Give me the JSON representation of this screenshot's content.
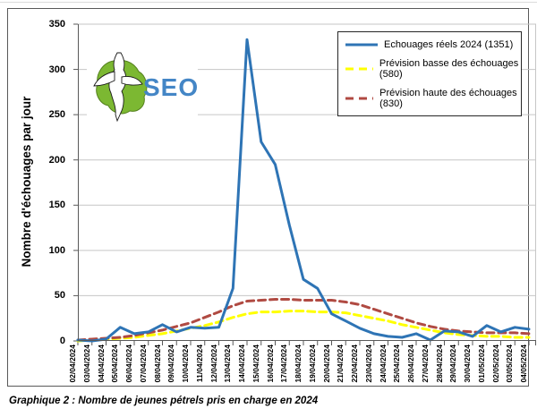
{
  "page": {
    "caption": "Graphique 2 : Nombre de jeunes pétrels pris en charge en 2024"
  },
  "logo": {
    "text": "SEOR",
    "island_color": "#7CB832",
    "text_color": "#4486C6"
  },
  "chart_data": {
    "type": "line",
    "title": "",
    "xlabel": "",
    "ylabel": "Nombre d'échouages par jour",
    "ylim": [
      0,
      350
    ],
    "yticks": [
      0,
      50,
      100,
      150,
      200,
      250,
      300,
      350
    ],
    "grid": true,
    "legend_position": "top-right",
    "colors": {
      "grid": "#C6C6C6",
      "axis": "#595959",
      "plot_border": "#C6C6C6"
    },
    "categories": [
      "02/04/2024",
      "03/04/2024",
      "04/04/2024",
      "05/04/2024",
      "06/04/2024",
      "07/04/2024",
      "08/04/2024",
      "09/04/2024",
      "10/04/2024",
      "11/04/2024",
      "12/04/2024",
      "13/04/2024",
      "14/04/2024",
      "15/04/2024",
      "16/04/2024",
      "17/04/2024",
      "18/04/2024",
      "19/04/2024",
      "20/04/2024",
      "21/04/2024",
      "22/04/2024",
      "23/04/2024",
      "24/04/2024",
      "25/04/2024",
      "26/04/2024",
      "27/04/2024",
      "28/04/2024",
      "29/04/2024",
      "30/04/2024",
      "01/05/2024",
      "02/05/2024",
      "03/05/2024",
      "04/05/2024"
    ],
    "series": [
      {
        "name": "Echouages réels 2024 (1351)",
        "total": 1351,
        "color": "#2E74B5",
        "style": "solid",
        "values": [
          1,
          0,
          2,
          15,
          8,
          10,
          18,
          10,
          15,
          14,
          15,
          58,
          333,
          220,
          195,
          128,
          68,
          58,
          30,
          22,
          14,
          8,
          5,
          4,
          8,
          1,
          11,
          10,
          5,
          17,
          10,
          15,
          13
        ]
      },
      {
        "name": "Prévision basse des échouages (580)",
        "total": 580,
        "color": "#FFFF00",
        "style": "dashed",
        "values": [
          0,
          1,
          2,
          3,
          4,
          6,
          8,
          11,
          14,
          17,
          21,
          26,
          30,
          32,
          32,
          33,
          33,
          32,
          32,
          31,
          28,
          25,
          22,
          18,
          15,
          12,
          9,
          7,
          6,
          5,
          5,
          4,
          4
        ]
      },
      {
        "name": "Prévision haute des échouages (830)",
        "total": 830,
        "color": "#B04A42",
        "style": "dashed",
        "values": [
          1,
          2,
          3,
          4,
          6,
          9,
          12,
          16,
          20,
          26,
          32,
          39,
          44,
          45,
          46,
          46,
          45,
          45,
          45,
          43,
          40,
          35,
          30,
          25,
          20,
          16,
          13,
          11,
          10,
          9,
          9,
          9,
          8
        ]
      }
    ]
  }
}
